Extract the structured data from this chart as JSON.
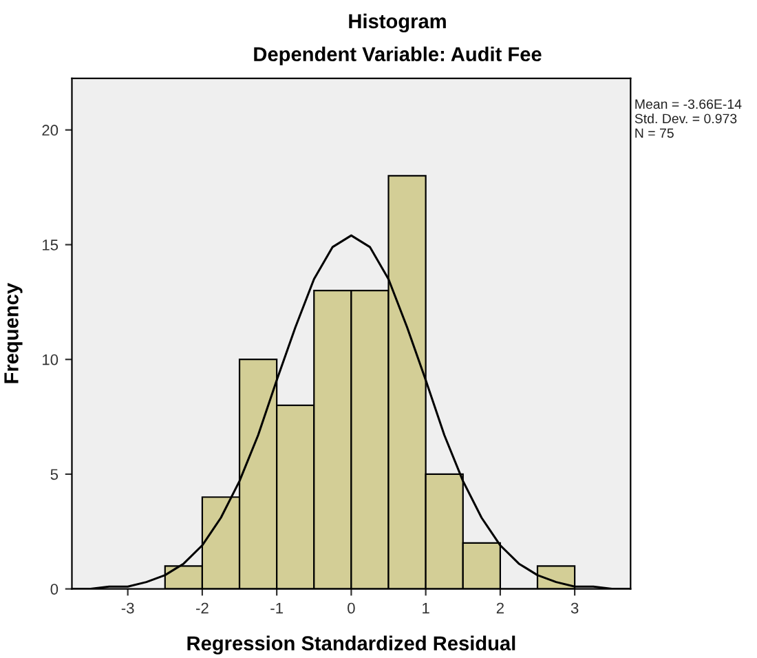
{
  "chart_data": {
    "type": "histogram",
    "title": "Histogram",
    "subtitle": "Dependent Variable: Audit Fee",
    "xlabel": "Regression Standardized Residual",
    "ylabel": "Frequency",
    "bins": [
      -2.5,
      -2.0,
      -1.5,
      -1.0,
      -0.5,
      0.0,
      0.5,
      1.0,
      1.5,
      2.0,
      2.5,
      3.0
    ],
    "values": [
      1,
      4,
      10,
      8,
      13,
      13,
      18,
      5,
      2,
      0,
      1
    ],
    "color": "#d3ce96",
    "series": [
      {
        "type": "line",
        "color": "#000000",
        "x": [
          -3.75,
          -3.5,
          -3.25,
          -3.0,
          -2.75,
          -2.5,
          -2.25,
          -2.0,
          -1.75,
          -1.5,
          -1.25,
          -1.0,
          -0.75,
          -0.5,
          -0.25,
          0.0,
          0.25,
          0.5,
          0.75,
          1.0,
          1.25,
          1.5,
          1.75,
          2.0,
          2.25,
          2.5,
          2.75,
          3.0,
          3.25,
          3.5,
          3.75
        ],
        "values": [
          0.0,
          0.0,
          0.1,
          0.1,
          0.3,
          0.6,
          1.1,
          1.9,
          3.1,
          4.7,
          6.7,
          9.1,
          11.4,
          13.5,
          14.9,
          15.4,
          14.9,
          13.5,
          11.4,
          9.1,
          6.7,
          4.7,
          3.1,
          1.9,
          1.1,
          0.6,
          0.3,
          0.1,
          0.1,
          0.0,
          0.0
        ]
      }
    ],
    "xlim": [
      -3.75,
      3.75
    ],
    "ylim": [
      0,
      22.25
    ],
    "xticks": [
      -3,
      -2,
      -1,
      0,
      1,
      2,
      3
    ],
    "yticks": [
      0,
      5,
      10,
      15,
      20
    ],
    "grid": false,
    "legend": false,
    "annotations": [
      "Mean = -3.66E-14",
      "Std. Dev. = 0.973",
      "N = 75"
    ]
  }
}
